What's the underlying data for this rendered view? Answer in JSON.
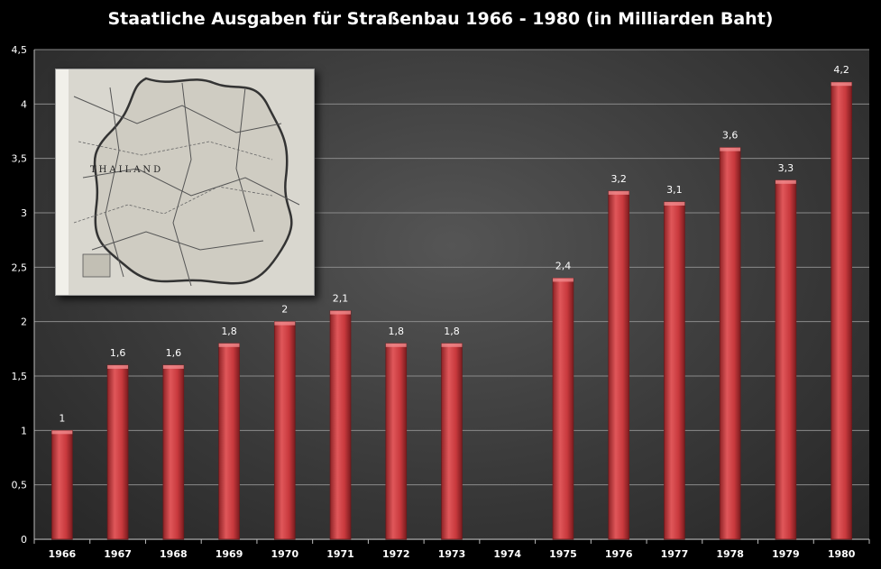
{
  "chart_data": {
    "type": "bar",
    "title": "Staatliche Ausgaben für Straßenbau 1966 - 1980 (in Milliarden Baht)",
    "categories": [
      "1966",
      "1967",
      "1968",
      "1969",
      "1970",
      "1971",
      "1972",
      "1973",
      "1974",
      "1975",
      "1976",
      "1977",
      "1978",
      "1979",
      "1980"
    ],
    "values": [
      1,
      1.6,
      1.6,
      1.8,
      2,
      2.1,
      1.8,
      1.8,
      null,
      2.4,
      3.2,
      3.1,
      3.6,
      3.3,
      4.2
    ],
    "value_labels": [
      "1",
      "1,6",
      "1,6",
      "1,8",
      "2",
      "2,1",
      "1,8",
      "1,8",
      "",
      "2,4",
      "3,2",
      "3,1",
      "3,6",
      "3,3",
      "4,2"
    ],
    "y_ticks": [
      0,
      0.5,
      1,
      1.5,
      2,
      2.5,
      3,
      3.5,
      4,
      4.5
    ],
    "y_tick_labels": [
      "0",
      "0,5",
      "1",
      "1,5",
      "2",
      "2,5",
      "3",
      "3,5",
      "4",
      "4,5"
    ],
    "ylim": [
      0,
      4.5
    ],
    "xlabel": "",
    "ylabel": "",
    "grid": true,
    "bar_color": "#d9474b"
  },
  "inset": {
    "map_label": "THAILAND"
  }
}
